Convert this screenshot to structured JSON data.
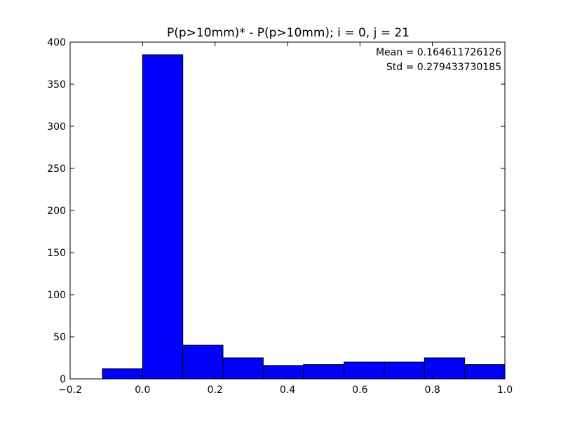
{
  "chart_data": {
    "type": "bar",
    "title": "P(p>10mm)* - P(p>10mm); i = 0, j = 21",
    "xlabel": "",
    "ylabel": "",
    "xlim": [
      -0.2,
      1.0
    ],
    "ylim": [
      0,
      400
    ],
    "xticks": [
      -0.2,
      0.0,
      0.2,
      0.4,
      0.6,
      0.8,
      1.0
    ],
    "xtick_labels": [
      "−0.2",
      "0.0",
      "0.2",
      "0.4",
      "0.6",
      "0.8",
      "1.0"
    ],
    "yticks": [
      0,
      50,
      100,
      150,
      200,
      250,
      300,
      350,
      400
    ],
    "ytick_labels": [
      "0",
      "50",
      "100",
      "150",
      "200",
      "250",
      "300",
      "350",
      "400"
    ],
    "grid": false,
    "bar_color": "#0000ff",
    "edge_color": "#000000",
    "bins": [
      {
        "x0": -0.111,
        "x1": 0.0,
        "count": 12
      },
      {
        "x0": 0.0,
        "x1": 0.111,
        "count": 385
      },
      {
        "x0": 0.111,
        "x1": 0.222,
        "count": 40
      },
      {
        "x0": 0.222,
        "x1": 0.333,
        "count": 25
      },
      {
        "x0": 0.333,
        "x1": 0.444,
        "count": 16
      },
      {
        "x0": 0.444,
        "x1": 0.556,
        "count": 17
      },
      {
        "x0": 0.556,
        "x1": 0.667,
        "count": 20
      },
      {
        "x0": 0.667,
        "x1": 0.778,
        "count": 20
      },
      {
        "x0": 0.778,
        "x1": 0.889,
        "count": 25
      },
      {
        "x0": 0.889,
        "x1": 1.0,
        "count": 17
      }
    ],
    "annotations": {
      "mean_text": "Mean = 0.164611726126",
      "std_text": "Std = 0.279433730185"
    }
  }
}
